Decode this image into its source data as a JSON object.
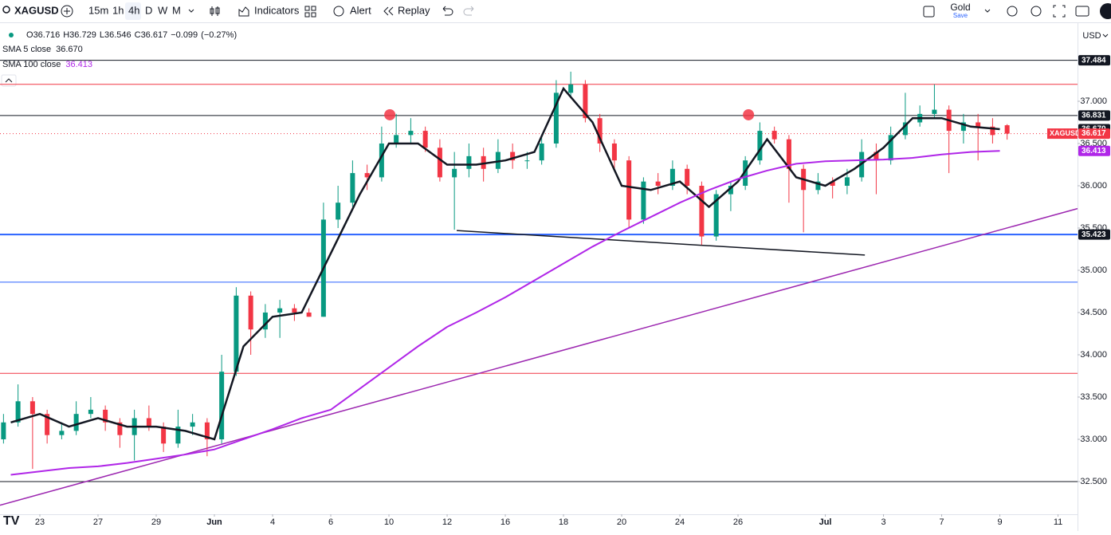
{
  "toolbar": {
    "symbol": "XAGUSD",
    "intervals": [
      "15m",
      "1h",
      "4h",
      "D",
      "W",
      "M"
    ],
    "active_interval": 2,
    "indicators_button": "Indicators",
    "alert_button": "Alert",
    "replay_button": "Replay",
    "layout_name": "Gold",
    "layout_action": "Save",
    "currency": "USD"
  },
  "chart_data": {
    "type": "candlestick",
    "legend": {
      "ohlc": [
        {
          "label": "O",
          "value": 36.716
        },
        {
          "label": "H",
          "value": 36.729
        },
        {
          "label": "L",
          "value": 36.546
        },
        {
          "label": "C",
          "value": 36.617
        }
      ],
      "change": {
        "value": -0.099,
        "label": "−0.099"
      },
      "change_pct": {
        "value": -0.27,
        "label": "(−0.27%)"
      }
    },
    "up_color": "#089981",
    "down_color": "#f23645",
    "grid": false,
    "xlim": [
      -1.37,
      35.67
    ],
    "ylim": [
      32.113,
      37.915
    ],
    "xticks": [
      {
        "value": 0,
        "label": "23"
      },
      {
        "value": 2,
        "label": "27"
      },
      {
        "value": 4,
        "label": "29"
      },
      {
        "value": 6,
        "label": "Jun"
      },
      {
        "value": 8,
        "label": "4"
      },
      {
        "value": 10,
        "label": "6"
      },
      {
        "value": 12,
        "label": "10"
      },
      {
        "value": 14,
        "label": "12"
      },
      {
        "value": 16,
        "label": "16"
      },
      {
        "value": 18,
        "label": "18"
      },
      {
        "value": 20,
        "label": "20"
      },
      {
        "value": 22,
        "label": "24"
      },
      {
        "value": 24,
        "label": "26"
      },
      {
        "value": 27,
        "label": "Jul"
      },
      {
        "value": 29,
        "label": "3"
      },
      {
        "value": 31,
        "label": "7"
      },
      {
        "value": 33,
        "label": "9"
      },
      {
        "value": 35,
        "label": "11"
      }
    ],
    "yticks": [
      {
        "value": 37,
        "label": "37.000"
      },
      {
        "value": 36.5,
        "label": "36.500"
      },
      {
        "value": 36,
        "label": "36.000"
      },
      {
        "value": 35.5,
        "label": "35.500"
      },
      {
        "value": 35,
        "label": "35.000"
      },
      {
        "value": 34.5,
        "label": "34.500"
      },
      {
        "value": 34,
        "label": "34.000"
      },
      {
        "value": 33.5,
        "label": "33.500"
      },
      {
        "value": 33,
        "label": "33.000"
      },
      {
        "value": 32.5,
        "label": "32.500"
      }
    ],
    "x": [
      -1.25,
      -0.75,
      -0.25,
      0.25,
      0.75,
      1.25,
      1.75,
      2.25,
      2.75,
      3.25,
      3.75,
      4.25,
      4.75,
      5.25,
      5.75,
      6.25,
      6.75,
      7.25,
      7.75,
      8.25,
      8.75,
      9.25,
      9.75,
      10.25,
      10.75,
      11.25,
      11.75,
      12.25,
      12.75,
      13.25,
      13.75,
      14.25,
      14.75,
      15.25,
      15.75,
      16.25,
      16.75,
      17.25,
      17.75,
      18.25,
      18.75,
      19.25,
      19.75,
      20.25,
      20.75,
      21.25,
      21.75,
      22.25,
      22.75,
      23.25,
      23.75,
      24.25,
      24.75,
      25.25,
      25.75,
      26.25,
      26.75,
      27.25,
      27.75,
      28.25,
      28.75,
      29.25,
      29.75,
      30.25,
      30.75,
      31.25,
      31.75,
      32.25,
      32.75,
      33.25
    ],
    "candles": [
      [
        33.0,
        33.3,
        32.95,
        33.2
      ],
      [
        33.2,
        33.65,
        33.15,
        33.45
      ],
      [
        33.45,
        33.5,
        32.65,
        33.3
      ],
      [
        33.3,
        33.35,
        32.95,
        33.05
      ],
      [
        33.05,
        33.2,
        33.0,
        33.1
      ],
      [
        33.1,
        33.45,
        33.05,
        33.3
      ],
      [
        33.3,
        33.5,
        33.25,
        33.35
      ],
      [
        33.35,
        33.4,
        33.1,
        33.2
      ],
      [
        33.2,
        33.25,
        32.9,
        33.05
      ],
      [
        33.05,
        33.35,
        32.75,
        33.25
      ],
      [
        33.25,
        33.4,
        33.1,
        33.15
      ],
      [
        33.15,
        33.2,
        32.85,
        32.95
      ],
      [
        32.95,
        33.35,
        32.9,
        33.15
      ],
      [
        33.15,
        33.3,
        33.05,
        33.2
      ],
      [
        33.2,
        33.25,
        32.8,
        33.0
      ],
      [
        33.0,
        34.0,
        32.95,
        33.8
      ],
      [
        33.8,
        34.8,
        33.75,
        34.7
      ],
      [
        34.7,
        34.75,
        34.0,
        34.3
      ],
      [
        34.3,
        34.6,
        34.2,
        34.5
      ],
      [
        34.5,
        34.65,
        34.2,
        34.55
      ],
      [
        34.55,
        34.6,
        34.4,
        34.5
      ],
      [
        34.5,
        34.55,
        34.45,
        34.45
      ],
      [
        34.45,
        35.8,
        34.45,
        35.6
      ],
      [
        35.6,
        36.0,
        35.5,
        35.8
      ],
      [
        35.8,
        36.3,
        35.75,
        36.15
      ],
      [
        36.15,
        36.25,
        35.95,
        36.1
      ],
      [
        36.1,
        36.7,
        36.05,
        36.5
      ],
      [
        36.5,
        36.85,
        36.45,
        36.6
      ],
      [
        36.6,
        36.8,
        36.5,
        36.65
      ],
      [
        36.65,
        36.7,
        36.4,
        36.45
      ],
      [
        36.45,
        36.55,
        36.05,
        36.1
      ],
      [
        36.1,
        36.4,
        35.48,
        36.2
      ],
      [
        36.2,
        36.5,
        36.1,
        36.35
      ],
      [
        36.35,
        36.45,
        36.05,
        36.2
      ],
      [
        36.2,
        36.55,
        36.15,
        36.4
      ],
      [
        36.4,
        36.5,
        36.2,
        36.3
      ],
      [
        36.3,
        36.4,
        36.2,
        36.3
      ],
      [
        36.3,
        36.6,
        36.25,
        36.5
      ],
      [
        36.5,
        37.25,
        36.45,
        37.1
      ],
      [
        37.1,
        37.35,
        37.05,
        37.2
      ],
      [
        37.2,
        37.25,
        36.75,
        36.8
      ],
      [
        36.8,
        36.85,
        36.4,
        36.5
      ],
      [
        36.5,
        36.55,
        36.2,
        36.3
      ],
      [
        36.3,
        36.35,
        35.5,
        35.6
      ],
      [
        35.6,
        36.1,
        35.55,
        36.05
      ],
      [
        36.05,
        36.15,
        35.9,
        36.0
      ],
      [
        36.0,
        36.3,
        35.95,
        36.2
      ],
      [
        36.2,
        36.25,
        35.9,
        36.0
      ],
      [
        36.0,
        36.05,
        35.3,
        35.4
      ],
      [
        35.4,
        35.95,
        35.35,
        35.9
      ],
      [
        35.9,
        36.05,
        35.7,
        36.0
      ],
      [
        36.0,
        36.35,
        35.95,
        36.3
      ],
      [
        36.3,
        36.75,
        36.25,
        36.65
      ],
      [
        36.65,
        36.7,
        36.5,
        36.55
      ],
      [
        36.55,
        36.6,
        35.8,
        36.2
      ],
      [
        36.2,
        36.25,
        35.45,
        35.95
      ],
      [
        35.95,
        36.15,
        35.9,
        36.05
      ],
      [
        36.05,
        36.1,
        35.85,
        36.0
      ],
      [
        36.0,
        36.2,
        35.9,
        36.1
      ],
      [
        36.1,
        36.55,
        36.05,
        36.4
      ],
      [
        36.4,
        36.5,
        35.9,
        36.3
      ],
      [
        36.3,
        36.7,
        36.25,
        36.6
      ],
      [
        36.6,
        37.1,
        36.55,
        36.75
      ],
      [
        36.75,
        36.95,
        36.7,
        36.85
      ],
      [
        36.85,
        37.2,
        36.8,
        36.9
      ],
      [
        36.9,
        36.95,
        36.15,
        36.65
      ],
      [
        36.65,
        36.85,
        36.5,
        36.75
      ],
      [
        36.75,
        36.85,
        36.3,
        36.7
      ],
      [
        36.7,
        36.8,
        36.5,
        36.6
      ],
      [
        36.716,
        36.729,
        36.546,
        36.617
      ]
    ],
    "indicators": [
      {
        "name": "SMA 5 close",
        "color": "#131722",
        "last": {
          "value": 36.67,
          "label": "36.670"
        },
        "x": [
          -1,
          0,
          1,
          2,
          3,
          4,
          5,
          6,
          7,
          8,
          9,
          10,
          11,
          12,
          13,
          14,
          15,
          16,
          17,
          18,
          19,
          20,
          21,
          22,
          23,
          24,
          25,
          26,
          27,
          28,
          29,
          30,
          31,
          32,
          33
        ],
        "values": [
          33.2,
          33.3,
          33.15,
          33.25,
          33.15,
          33.15,
          33.1,
          33.0,
          34.1,
          34.45,
          34.5,
          35.2,
          35.9,
          36.5,
          36.5,
          36.25,
          36.25,
          36.3,
          36.4,
          37.15,
          36.75,
          36.0,
          35.95,
          36.05,
          35.75,
          36.05,
          36.55,
          36.1,
          36.0,
          36.2,
          36.45,
          36.8,
          36.8,
          36.7,
          36.67
        ]
      },
      {
        "name": "SMA 100 close",
        "color": "#b026e8",
        "last": {
          "value": 36.413,
          "label": "36.413"
        },
        "x": [
          -1,
          0,
          1,
          2,
          3,
          4,
          5,
          6,
          7,
          8,
          9,
          10,
          11,
          12,
          13,
          14,
          15,
          16,
          17,
          18,
          19,
          20,
          21,
          22,
          23,
          24,
          25,
          26,
          27,
          28,
          29,
          30,
          31,
          32,
          33
        ],
        "values": [
          32.58,
          32.62,
          32.66,
          32.68,
          32.72,
          32.77,
          32.82,
          32.88,
          33.0,
          33.12,
          33.25,
          33.35,
          33.6,
          33.85,
          34.1,
          34.33,
          34.5,
          34.68,
          34.88,
          35.08,
          35.28,
          35.46,
          35.63,
          35.8,
          35.95,
          36.08,
          36.18,
          36.26,
          36.29,
          36.3,
          36.31,
          36.33,
          36.37,
          36.4,
          36.413
        ]
      }
    ],
    "levels": [
      {
        "value": 37.484,
        "color": "#131722",
        "label": "37.484"
      },
      {
        "value": 37.2,
        "color": "#f23645"
      },
      {
        "value": 36.831,
        "color": "#131722",
        "label": "36.831"
      },
      {
        "value": 35.423,
        "color": "#2962ff",
        "label": "35.423"
      },
      {
        "value": 34.86,
        "color": "#2962ff"
      },
      {
        "value": 33.78,
        "color": "#f23645"
      },
      {
        "value": 32.5,
        "color": "#131722"
      }
    ],
    "trendlines": [
      {
        "color": "#131722",
        "x": [
          14.33,
          28.36
        ],
        "values": [
          35.47,
          35.18
        ]
      },
      {
        "color": "#9c27b0",
        "x": [
          -1.37,
          35.67
        ],
        "values": [
          32.22,
          35.73
        ]
      }
    ],
    "markers": [
      {
        "x": 12.03,
        "value": 36.84,
        "color": "#f23645"
      },
      {
        "x": 24.36,
        "value": 36.84,
        "color": "#f23645"
      }
    ],
    "last_price": {
      "symbol": "XAGUSD",
      "value": 36.617,
      "label": "36.617",
      "color": "#f23645"
    }
  }
}
